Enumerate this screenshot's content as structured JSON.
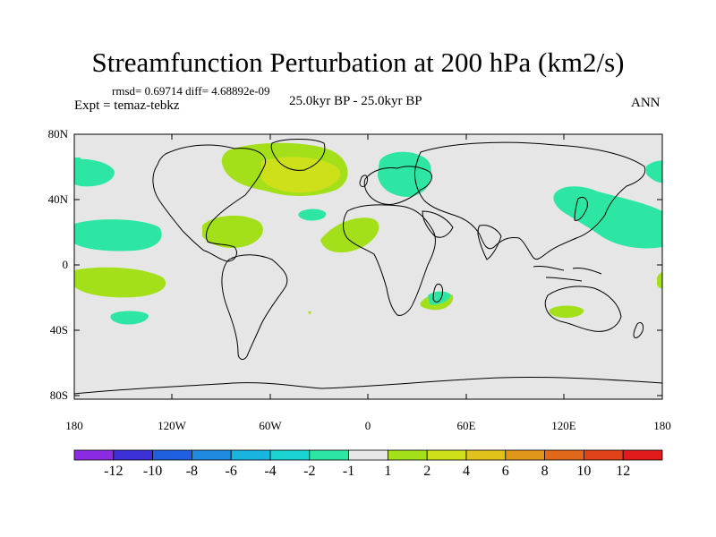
{
  "title": "Streamfunction Perturbation at 200 hPa (km2/s)",
  "stats": "rmsd= 0.69714 diff= 4.68892e-09",
  "experiment": "Expt = temaz-tebkz",
  "period": "25.0kyr BP - 25.0kyr BP",
  "season": "ANN",
  "lat_labels": [
    "80N",
    "40N",
    "0",
    "40S",
    "80S"
  ],
  "lon_labels": [
    "180",
    "120W",
    "60W",
    "0",
    "60E",
    "120E",
    "180"
  ],
  "colorbar": {
    "labels": [
      "-12",
      "-10",
      "-8",
      "-6",
      "-4",
      "-2",
      "-1",
      "1",
      "2",
      "4",
      "6",
      "8",
      "10",
      "12"
    ],
    "colors": [
      "#8a2be2",
      "#3b2fd6",
      "#1f5fe0",
      "#1d8ae0",
      "#1ab4e0",
      "#1ad2d2",
      "#2ee6a4",
      "#e6e6e6",
      "#a3e01a",
      "#cde01a",
      "#e0c21a",
      "#e0961a",
      "#e0681a",
      "#e0421a",
      "#e01a1a"
    ]
  }
}
